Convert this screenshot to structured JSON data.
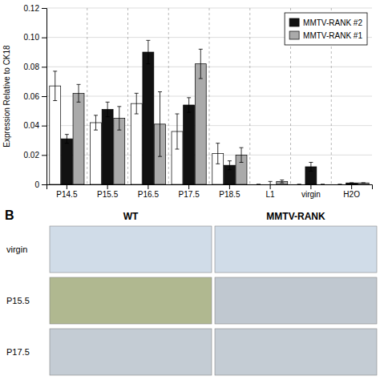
{
  "chart_data": {
    "type": "bar",
    "ylabel": "Expression Relative to CK18",
    "categories": [
      "P14.5",
      "P15.5",
      "P16.5",
      "P17.5",
      "P18.5",
      "L1",
      "virgin",
      "H2O"
    ],
    "series": [
      {
        "color": "#ffffff",
        "values": [
          0.067,
          0.042,
          0.055,
          0.036,
          0.021,
          0.0,
          0.0,
          0.0
        ],
        "errors": [
          0.01,
          0.005,
          0.007,
          0.012,
          0.007,
          0.0,
          0.0,
          0.0
        ]
      },
      {
        "name": "MMTV-RANK #2",
        "color": "#111111",
        "values": [
          0.031,
          0.051,
          0.09,
          0.054,
          0.013,
          0.0,
          0.012,
          0.001
        ],
        "errors": [
          0.003,
          0.005,
          0.008,
          0.005,
          0.003,
          0.002,
          0.003,
          0.0
        ]
      },
      {
        "name": "MMTV-RANK #1",
        "color": "#aaaaaa",
        "values": [
          0.062,
          0.045,
          0.041,
          0.082,
          0.02,
          0.002,
          0.0,
          0.001
        ],
        "errors": [
          0.006,
          0.008,
          0.022,
          0.01,
          0.005,
          0.001,
          0.0,
          0.0
        ]
      }
    ],
    "ylim": [
      0,
      0.12
    ],
    "yticks": [
      0,
      0.02,
      0.04,
      0.06,
      0.08,
      {
        "value": 0.1,
        "label": "0.10"
      },
      0.12
    ],
    "grid": true,
    "legend": "upper right",
    "annotations": [
      "B",
      "WT",
      "MMTV-RANK",
      "virgin",
      "P15.5",
      "P17.5"
    ]
  }
}
